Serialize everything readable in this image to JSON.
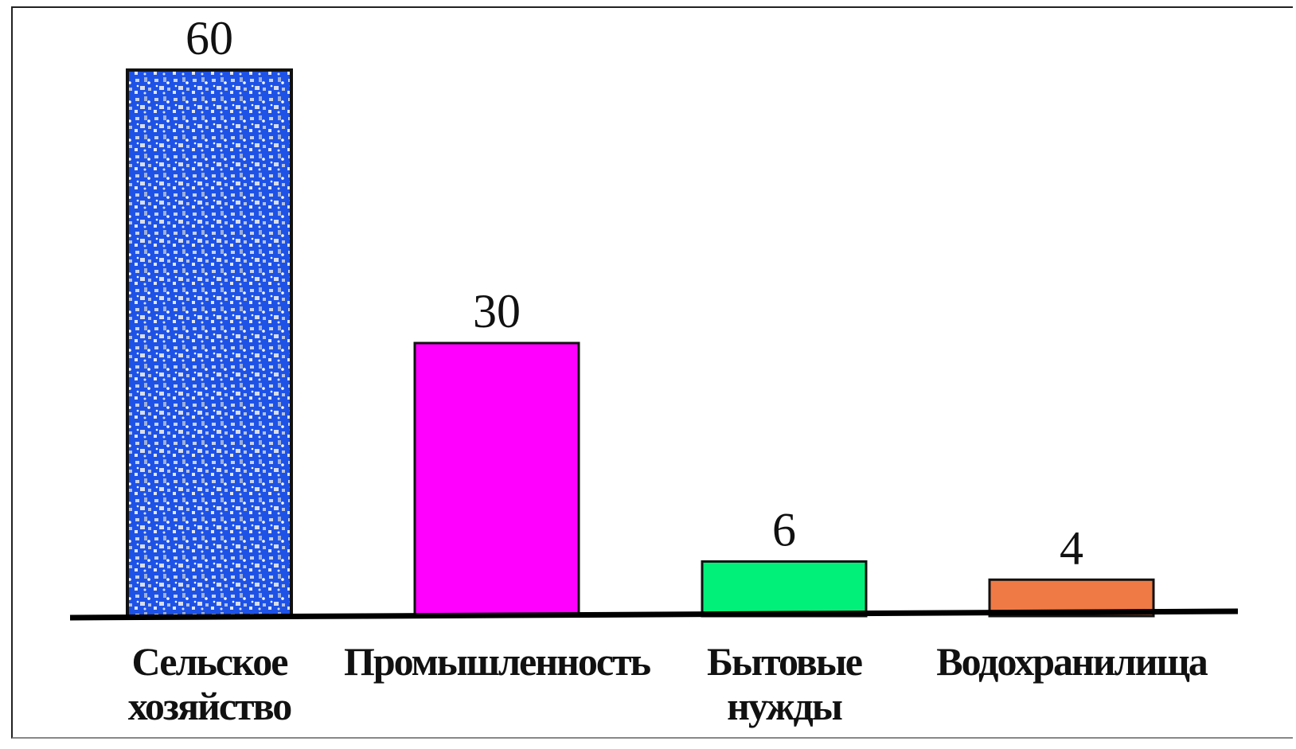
{
  "chart_data": {
    "type": "bar",
    "categories": [
      [
        "Сельское",
        "хозяйство"
      ],
      [
        "Промышленность"
      ],
      [
        "Бытовые",
        "нужды"
      ],
      [
        "Водохранилища"
      ]
    ],
    "values": [
      60,
      30,
      6,
      4
    ],
    "data_labels": [
      "60",
      "30",
      "6",
      "4"
    ],
    "colors": [
      "#1E52E6",
      "#FF00FF",
      "#00F07A",
      "#F07A45"
    ],
    "ylim": [
      0,
      60
    ],
    "grid": false,
    "legend": "none",
    "title": "",
    "xlabel": "",
    "ylabel": ""
  }
}
